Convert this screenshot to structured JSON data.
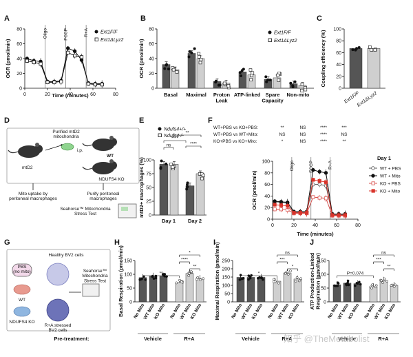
{
  "watermark": "知乎 @TheMetabolist",
  "panels": {
    "A": {
      "letter": "A",
      "ylabel": "OCR (pmol/min)",
      "xlabel": "Time (minutes)",
      "injections": [
        "Oligo",
        "FCCP",
        "R+A"
      ],
      "legend": [
        "Ext1F/F",
        "Ext1ΔLyz2"
      ],
      "yticks": [
        "0",
        "20",
        "40",
        "60",
        "80"
      ],
      "xticks": [
        "0",
        "20",
        "40",
        "60",
        "80"
      ]
    },
    "B": {
      "letter": "B",
      "ylabel": "OCR (pmol/min)",
      "categories": [
        "Basal",
        "Maximal",
        "Proton\nLeak",
        "ATP-linked",
        "Spare\nCapacity",
        "Non-mito"
      ],
      "legend": [
        "Ext1F/F",
        "Ext1ΔLyz2"
      ],
      "yticks": [
        "0",
        "20",
        "40",
        "60",
        "80"
      ]
    },
    "C": {
      "letter": "C",
      "ylabel": "Coupling efficiency (%)",
      "categories": [
        "Ext1F/F",
        "Ext1ΔLyz2"
      ],
      "yticks": [
        "0",
        "20",
        "40",
        "60",
        "80",
        "100"
      ]
    },
    "D": {
      "letter": "D",
      "labels": {
        "mouse1": "mtD2",
        "purified": "Purified mtD2\nmitochondria",
        "ip": "i.p.",
        "wt": "WT",
        "ko": "NDUFS4 KO",
        "uptake": "Mito uptake by\nperitoneal macrophages",
        "purify": "Purify peritoneal\nmacrophages",
        "seahorse": "Seahorse™ Mitochondria\nStress Test"
      }
    },
    "E": {
      "letter": "E",
      "ylabel": "mtD2+ macrophages (%)",
      "legend": [
        "Ndufs4+/+",
        "Ndufs4-/-"
      ],
      "categories": [
        "Day 1",
        "Day 2"
      ],
      "sig": [
        "ns",
        "****",
        "****",
        "**"
      ],
      "yticks": [
        "0",
        "25",
        "50",
        "75",
        "100"
      ]
    },
    "F": {
      "letter": "F",
      "ylabel": "OCR (pmol/min)",
      "xlabel": "Time (minutes)",
      "comparisons": [
        "WT+PBS vs KO+PBS:",
        "WT+PBS vs WT+Mito:",
        "KO+PBS vs KO+Mito:"
      ],
      "sig_rows": [
        [
          "**",
          "NS",
          "****",
          "***"
        ],
        [
          "NS",
          "NS",
          "****",
          "NS"
        ],
        [
          "*",
          "NS",
          "****",
          "**"
        ]
      ],
      "injections": [
        "Oligo",
        "FCCP",
        "R+A"
      ],
      "legend_title": "Day 1",
      "legend": [
        "WT + PBS",
        "WT + Mito",
        "KO + PBS",
        "KO + Mito"
      ],
      "yticks": [
        "0",
        "20",
        "40",
        "60",
        "80",
        "100"
      ],
      "xticks": [
        "0",
        "20",
        "40",
        "60",
        "80"
      ]
    },
    "G": {
      "letter": "G",
      "labels": {
        "pbs": "PBS\n(no mito)",
        "wt": "WT",
        "ko": "NDUFS4 KO",
        "healthy": "Healthy BV2 cells",
        "stressed": "R+A stressed\nBV2 cells",
        "seahorse": "Seahorse™\nMitochondria\nStress Test"
      }
    },
    "H": {
      "letter": "H",
      "ylabel": "Basal Respiration (pmol/min)",
      "yticks": [
        "0",
        "50",
        "100",
        "150"
      ],
      "sig": [
        "**",
        "*",
        "****",
        "**"
      ]
    },
    "I": {
      "letter": "I",
      "ylabel": "Maximal Respiration (pmol/min)",
      "yticks": [
        "0",
        "50",
        "100",
        "150",
        "200",
        "250"
      ],
      "sig": [
        "*",
        "ns",
        "***",
        "*"
      ]
    },
    "J": {
      "letter": "J",
      "ylabel": "ATP Production-Linked\nRespiration (pmol/min)",
      "yticks": [
        "0",
        "50",
        "100",
        "150"
      ],
      "sig": [
        "P=0.074",
        "ns",
        "***",
        "**"
      ]
    }
  },
  "group_xlabels": [
    "No Mito",
    "WT Mito",
    "KO Mito",
    "No Mito",
    "WT Mito",
    "KO Mito"
  ],
  "pretreatment": {
    "label": "Pre-treatment:",
    "vehicle": "Vehicle",
    "ra": "R+A"
  },
  "chart_data": [
    {
      "id": "A",
      "type": "line",
      "xlabel": "Time (minutes)",
      "ylabel": "OCR (pmol/min)",
      "xlim": [
        0,
        80
      ],
      "ylim": [
        0,
        80
      ],
      "x": [
        2,
        8,
        14,
        20,
        26,
        32,
        38,
        44,
        50,
        56,
        62,
        68
      ],
      "series": [
        {
          "name": "Ext1F/F",
          "values": [
            40,
            37,
            36,
            9,
            9,
            10,
            54,
            50,
            38,
            7,
            6,
            6
          ]
        },
        {
          "name": "Ext1ΔLyz2",
          "values": [
            37,
            35,
            33,
            8,
            8,
            9,
            48,
            44,
            42,
            6,
            5,
            5
          ]
        }
      ]
    },
    {
      "id": "B",
      "type": "bar",
      "ylabel": "OCR (pmol/min)",
      "ylim": [
        0,
        80
      ],
      "categories": [
        "Basal",
        "Maximal",
        "Proton Leak",
        "ATP-linked",
        "Spare Capacity",
        "Non-mito"
      ],
      "series": [
        {
          "name": "Ext1F/F",
          "values": [
            32,
            47,
            9,
            22,
            12,
            6
          ]
        },
        {
          "name": "Ext1ΔLyz2",
          "values": [
            25,
            40,
            7,
            18,
            14,
            4
          ]
        }
      ]
    },
    {
      "id": "C",
      "type": "bar",
      "ylabel": "Coupling efficiency (%)",
      "ylim": [
        0,
        100
      ],
      "categories": [
        "Ext1F/F",
        "Ext1ΔLyz2"
      ],
      "values": [
        67,
        67
      ]
    },
    {
      "id": "E",
      "type": "bar",
      "ylabel": "mtD2+ macrophages (%)",
      "ylim": [
        0,
        100
      ],
      "categories": [
        "Day 1",
        "Day 2"
      ],
      "series": [
        {
          "name": "Ndufs4+/+",
          "values": [
            92,
            53
          ]
        },
        {
          "name": "Ndufs4-/-",
          "values": [
            92,
            75
          ]
        }
      ]
    },
    {
      "id": "F",
      "type": "line",
      "xlabel": "Time (minutes)",
      "ylabel": "OCR (pmol/min)",
      "xlim": [
        0,
        80
      ],
      "ylim": [
        0,
        100
      ],
      "x": [
        2,
        8,
        14,
        20,
        26,
        32,
        38,
        44,
        50,
        56,
        62,
        68
      ],
      "series": [
        {
          "name": "WT + PBS",
          "values": [
            30,
            29,
            28,
            12,
            12,
            12,
            60,
            60,
            58,
            8,
            8,
            8
          ]
        },
        {
          "name": "WT + Mito",
          "values": [
            31,
            30,
            29,
            13,
            13,
            13,
            85,
            82,
            80,
            9,
            9,
            9
          ]
        },
        {
          "name": "KO + PBS",
          "values": [
            17,
            17,
            16,
            10,
            10,
            10,
            38,
            37,
            36,
            6,
            6,
            6
          ]
        },
        {
          "name": "KO + Mito",
          "values": [
            25,
            24,
            23,
            11,
            11,
            11,
            68,
            66,
            64,
            7,
            7,
            7
          ]
        }
      ]
    },
    {
      "id": "H",
      "type": "bar",
      "ylabel": "Basal Respiration (pmol/min)",
      "ylim": [
        0,
        150
      ],
      "categories": [
        "No Mito",
        "WT Mito",
        "KO Mito",
        "No Mito",
        "WT Mito",
        "KO Mito"
      ],
      "values": [
        88,
        93,
        93,
        70,
        103,
        85
      ]
    },
    {
      "id": "I",
      "type": "bar",
      "ylabel": "Maximal Respiration (pmol/min)",
      "ylim": [
        0,
        250
      ],
      "categories": [
        "No Mito",
        "WT Mito",
        "KO Mito",
        "No Mito",
        "WT Mito",
        "KO Mito"
      ],
      "values": [
        148,
        148,
        148,
        125,
        175,
        138
      ]
    },
    {
      "id": "J",
      "type": "bar",
      "ylabel": "ATP Production-Linked Respiration (pmol/min)",
      "ylim": [
        0,
        150
      ],
      "categories": [
        "No Mito",
        "WT Mito",
        "KO Mito",
        "No Mito",
        "WT Mito",
        "KO Mito"
      ],
      "values": [
        62,
        68,
        66,
        55,
        78,
        60
      ]
    }
  ]
}
